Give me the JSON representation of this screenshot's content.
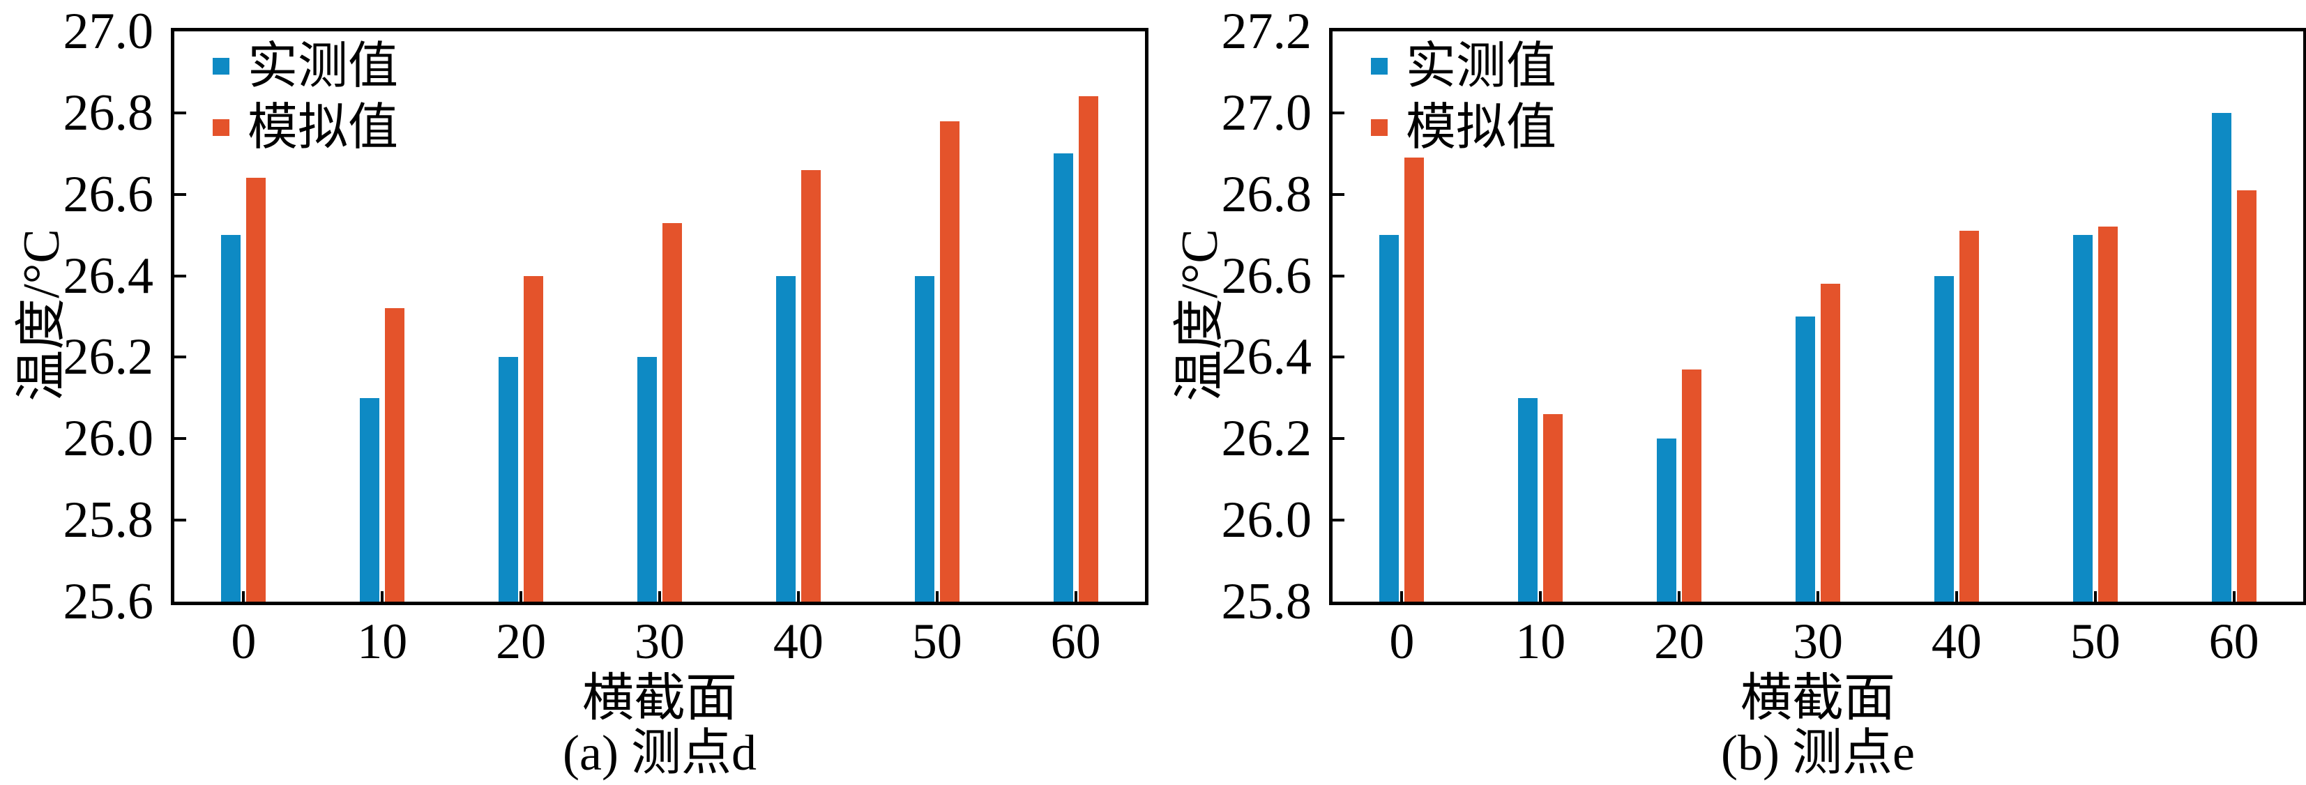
{
  "figure": {
    "background": "#ffffff",
    "axis_color": "#000000"
  },
  "legend": {
    "items": [
      {
        "label": "实测值",
        "color": "#0e8ac4"
      },
      {
        "label": "模拟值",
        "color": "#e4532b"
      }
    ]
  },
  "chart_data": [
    {
      "type": "bar",
      "title": "",
      "caption": "(a) 测点d",
      "xlabel": "横截面",
      "ylabel": "温度/°C",
      "categories": [
        "0",
        "10",
        "20",
        "30",
        "40",
        "50",
        "60"
      ],
      "ylim": [
        25.6,
        27.0
      ],
      "yticks": [
        "25.6",
        "25.8",
        "26.0",
        "26.2",
        "26.4",
        "26.6",
        "26.8",
        "27.0"
      ],
      "grid": false,
      "legend_position": "upper-left",
      "series": [
        {
          "key": "measured",
          "name": "实测值",
          "color": "#0e8ac4",
          "values": [
            26.5,
            26.1,
            26.2,
            26.2,
            26.4,
            26.4,
            26.7
          ]
        },
        {
          "key": "simulated",
          "name": "模拟值",
          "color": "#e4532b",
          "values": [
            26.64,
            26.32,
            26.4,
            26.53,
            26.66,
            26.78,
            26.84
          ]
        }
      ]
    },
    {
      "type": "bar",
      "title": "",
      "caption": "(b) 测点e",
      "xlabel": "横截面",
      "ylabel": "温度/°C",
      "categories": [
        "0",
        "10",
        "20",
        "30",
        "40",
        "50",
        "60"
      ],
      "ylim": [
        25.8,
        27.2
      ],
      "yticks": [
        "25.8",
        "26.0",
        "26.2",
        "26.4",
        "26.6",
        "26.8",
        "27.0",
        "27.2"
      ],
      "grid": false,
      "legend_position": "upper-left",
      "series": [
        {
          "key": "measured",
          "name": "实测值",
          "color": "#0e8ac4",
          "values": [
            26.7,
            26.3,
            26.2,
            26.5,
            26.6,
            26.7,
            27.0
          ]
        },
        {
          "key": "simulated",
          "name": "模拟值",
          "color": "#e4532b",
          "values": [
            26.89,
            26.26,
            26.37,
            26.58,
            26.71,
            26.72,
            26.81
          ]
        }
      ]
    }
  ]
}
